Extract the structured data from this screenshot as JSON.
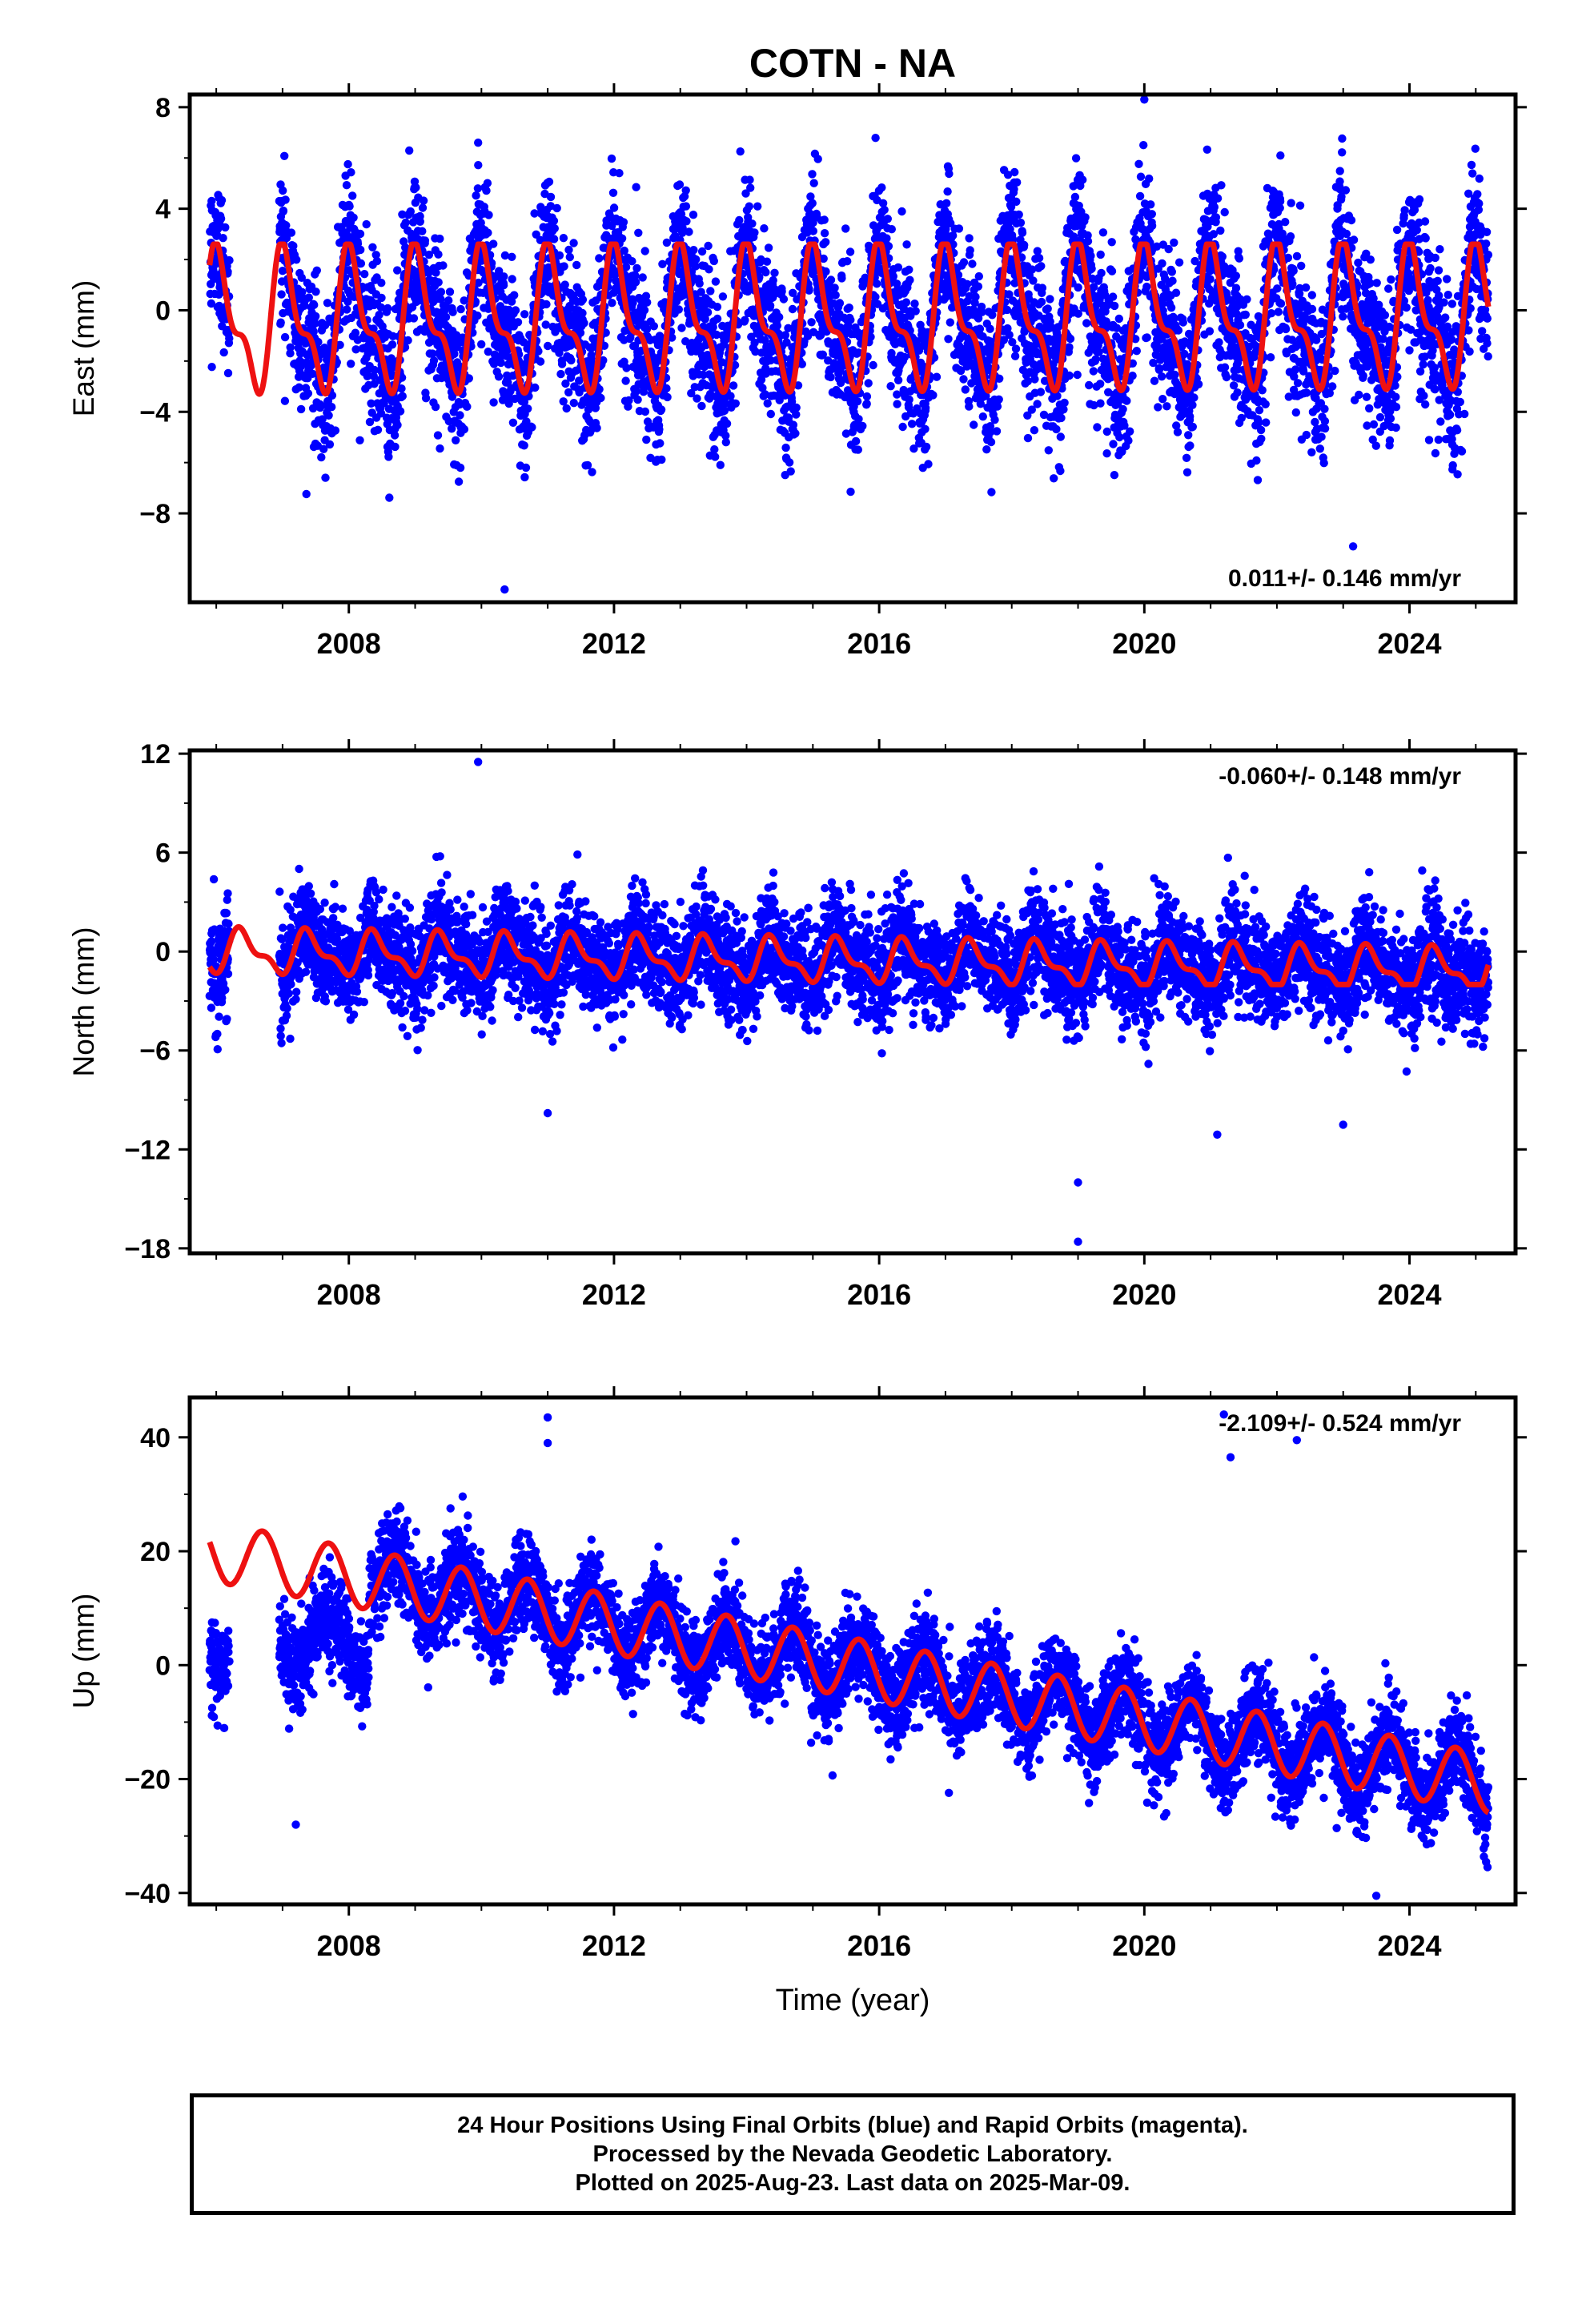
{
  "title": "COTN - NA",
  "colors": {
    "observed": "#0000ff",
    "model": "#ee1111",
    "axis": "#000000"
  },
  "chart_data": [
    {
      "type": "scatter",
      "component": "east",
      "ylabel": "East (mm)",
      "xlim": [
        2005.6,
        2025.6
      ],
      "ylim": [
        -11.5,
        8.5
      ],
      "yticks": [
        -8,
        -4,
        0,
        4,
        8
      ],
      "xticks": [
        2008,
        2012,
        2016,
        2020,
        2024
      ],
      "rate_label": "0.011+/- 0.146 mm/yr",
      "rate_position": "bottom-right",
      "grid": false,
      "series": [
        {
          "role": "observed",
          "marker": "dot",
          "data_start": 2005.9,
          "data_end": 2025.19,
          "gap": [
            2006.2,
            2006.95
          ],
          "baseline_mean": 0.0,
          "trend_per_year": 0.011,
          "annual_amplitude": 3.3,
          "noise_sd": 1.5,
          "notable_points": [
            [
              2010.35,
              -11.0
            ],
            [
              2020.0,
              8.3
            ],
            [
              2009.95,
              6.6
            ],
            [
              2023.15,
              -9.3
            ]
          ]
        },
        {
          "role": "model",
          "type": "line",
          "start": 2005.9,
          "end": 2025.19,
          "offset": -0.5,
          "trend_per_year": 0.011,
          "annual_amplitude": 3.2,
          "annual_phase_peak": 0.05,
          "shape": "sawtooth-dip",
          "dip_min": -4.0,
          "peak_max": 2.6
        }
      ]
    },
    {
      "type": "scatter",
      "component": "north",
      "ylabel": "North (mm)",
      "xlim": [
        2005.6,
        2025.6
      ],
      "ylim": [
        -18.3,
        12.2
      ],
      "yticks": [
        -18,
        -12,
        -6,
        0,
        6,
        12
      ],
      "xticks": [
        2008,
        2012,
        2016,
        2020,
        2024
      ],
      "rate_label": "-0.060+/- 0.148 mm/yr",
      "rate_position": "top-right",
      "grid": false,
      "series": [
        {
          "role": "observed",
          "marker": "dot",
          "data_start": 2005.9,
          "data_end": 2025.19,
          "gap": [
            2006.2,
            2006.95
          ],
          "baseline_mean": 0.3,
          "trend_per_year": -0.06,
          "annual_amplitude": 1.4,
          "noise_sd": 1.6,
          "notable_points": [
            [
              2009.95,
              11.5
            ],
            [
              2019.0,
              -17.6
            ],
            [
              2019.0,
              -14.0
            ],
            [
              2011.0,
              -9.8
            ],
            [
              2021.1,
              -11.1
            ],
            [
              2023.0,
              -10.5
            ]
          ]
        },
        {
          "role": "model",
          "type": "line",
          "start": 2005.9,
          "end": 2025.19,
          "offset": 0.0,
          "trend_per_year": -0.06,
          "annual_amplitude": 1.5,
          "annual_phase_peak": 0.4,
          "shape": "sawtooth-dip",
          "dip_min": -2.0,
          "peak_max": 1.5
        }
      ]
    },
    {
      "type": "scatter",
      "component": "up",
      "ylabel": "Up (mm)",
      "xlabel": "Time (year)",
      "xlim": [
        2005.6,
        2025.6
      ],
      "ylim": [
        -42,
        47
      ],
      "yticks": [
        -40,
        -20,
        0,
        20,
        40
      ],
      "xticks": [
        2008,
        2012,
        2016,
        2020,
        2024
      ],
      "rate_label": "-2.109+/- 0.524 mm/yr",
      "rate_position": "top-right",
      "grid": false,
      "series": [
        {
          "role": "observed",
          "marker": "dot",
          "data_start": 2005.9,
          "data_end": 2025.19,
          "gap": [
            2006.2,
            2006.95
          ],
          "early_offset_until": 2008.3,
          "early_offset": -24,
          "baseline_mean": 15.5,
          "trend_per_year": -2.109,
          "annual_amplitude": 5.0,
          "noise_sd": 4.0,
          "notable_points": [
            [
              2011.0,
              43.5
            ],
            [
              2011.0,
              39.0
            ],
            [
              2007.2,
              -28.0
            ],
            [
              2021.2,
              44.0
            ],
            [
              2021.3,
              36.5
            ],
            [
              2022.3,
              39.5
            ],
            [
              2023.5,
              -40.5
            ]
          ]
        },
        {
          "role": "model",
          "type": "line",
          "start": 2005.9,
          "end": 2025.19,
          "offset": 0.0,
          "start_value": 20.0,
          "trend_per_year": -2.109,
          "annual_amplitude": 5.2,
          "annual_phase_peak": 0.7
        }
      ]
    }
  ],
  "footer": {
    "lines": [
      "24 Hour Positions Using Final Orbits (blue) and Rapid Orbits (magenta).",
      "Processed by the Nevada Geodetic Laboratory.",
      "Plotted on 2025-Aug-23. Last data on 2025-Mar-09."
    ]
  }
}
